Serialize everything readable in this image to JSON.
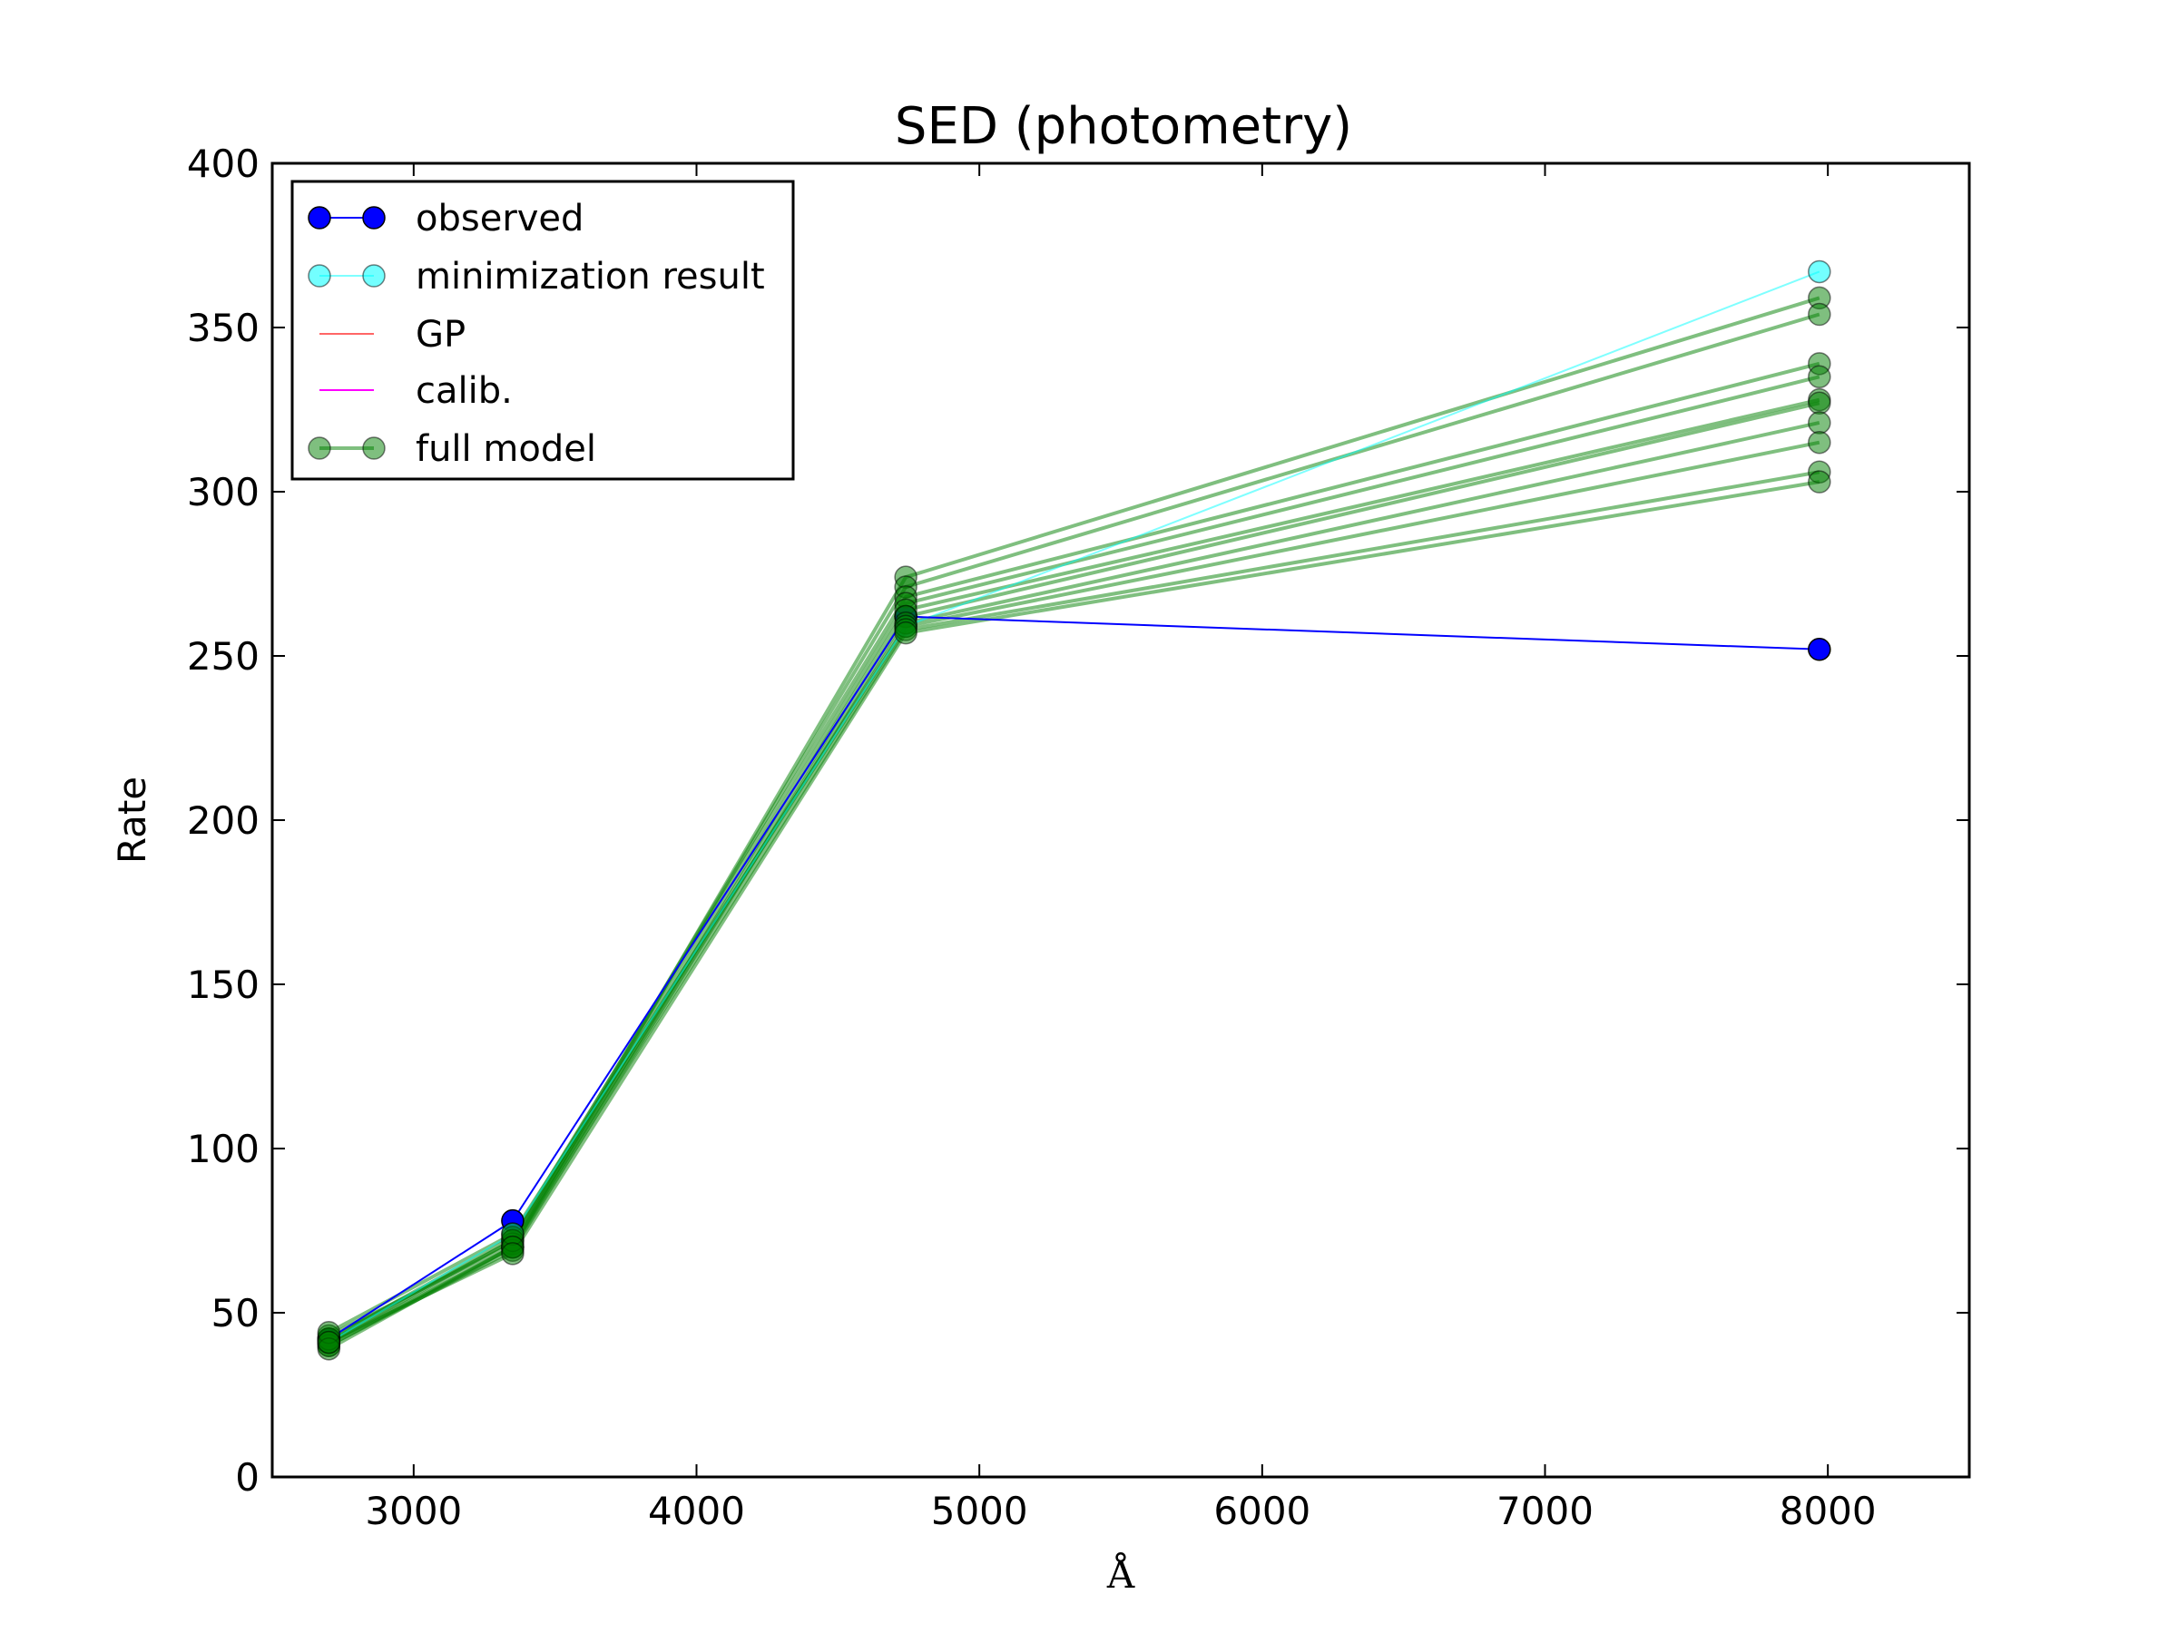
{
  "chart_data": {
    "type": "line",
    "title": "SED (photometry)",
    "xlabel": "Å",
    "ylabel": "Rate",
    "xlim": [
      2500,
      8500
    ],
    "ylim": [
      0,
      400
    ],
    "x_ticks": [
      3000,
      4000,
      5000,
      6000,
      7000,
      8000
    ],
    "y_ticks": [
      0,
      50,
      100,
      150,
      200,
      250,
      300,
      350,
      400
    ],
    "x_tick_labels": [
      "3000",
      "4000",
      "5000",
      "6000",
      "7000",
      "8000"
    ],
    "y_tick_labels": [
      "0",
      "50",
      "100",
      "150",
      "200",
      "250",
      "300",
      "350",
      "400"
    ],
    "grid": false,
    "legend_position": "top-left",
    "x": [
      2700,
      3350,
      4740,
      7970
    ],
    "colors": {
      "observed": "#0000ff",
      "minimization": "#00ffff",
      "gp": "#ff0000",
      "calib": "#ff00ff",
      "full_model": "#008000"
    },
    "legend": [
      {
        "label": "observed",
        "key": "observed",
        "style": "line-marker"
      },
      {
        "label": "minimization result",
        "key": "minimization",
        "style": "line-marker-light"
      },
      {
        "label": "GP",
        "key": "gp",
        "style": "line"
      },
      {
        "label": "calib.",
        "key": "calib",
        "style": "line"
      },
      {
        "label": "full model",
        "key": "full_model",
        "style": "line-marker-alpha"
      }
    ],
    "series": [
      {
        "name": "observed",
        "values": [
          42,
          78,
          262,
          252
        ]
      },
      {
        "name": "minimization result",
        "values": [
          41,
          74,
          259,
          367
        ]
      },
      {
        "name": "full model",
        "values": [
          [
            40,
            70,
            274,
            359
          ],
          [
            41,
            72,
            271,
            354
          ],
          [
            42,
            73,
            268,
            339
          ],
          [
            43,
            71,
            266,
            335
          ],
          [
            41,
            70,
            264,
            328
          ],
          [
            40,
            69,
            262,
            327
          ],
          [
            42,
            72,
            260,
            321
          ],
          [
            44,
            74,
            259,
            315
          ],
          [
            39,
            70,
            258,
            306
          ],
          [
            41,
            68,
            257,
            303
          ]
        ]
      }
    ]
  }
}
